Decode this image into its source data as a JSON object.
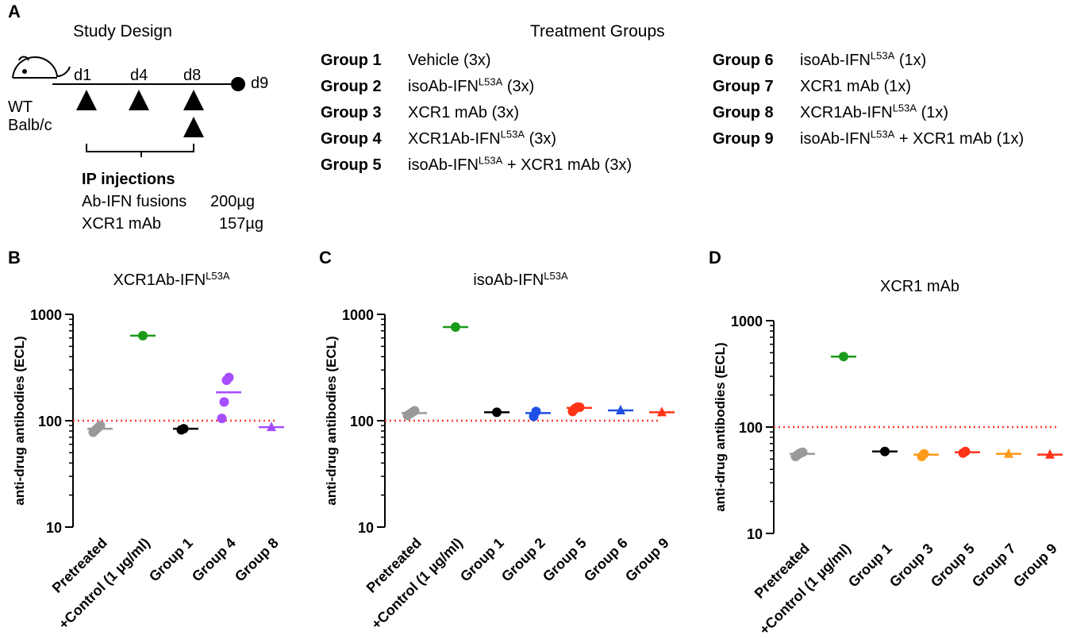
{
  "panel_a": {
    "letter": "A",
    "study_design_title": "Study Design",
    "treatment_title": "Treatment Groups",
    "days": [
      "d1",
      "d4",
      "d8",
      "d9"
    ],
    "mouse_label_1": "WT",
    "mouse_label_2": "Balb/c",
    "ip_title": "IP injections",
    "ip_line1_name": "Ab-IFN fusions",
    "ip_line1_dose": "200µg",
    "ip_line2_name": "XCR1 mAb",
    "ip_line2_dose": "157µg",
    "groups_left": [
      {
        "name": "Group 1",
        "pre": "Vehicle (3x)",
        "sup": "",
        "post": ""
      },
      {
        "name": "Group 2",
        "pre": "isoAb-IFN",
        "sup": "L53A",
        "post": " (3x)"
      },
      {
        "name": "Group 3",
        "pre": "XCR1 mAb (3x)",
        "sup": "",
        "post": ""
      },
      {
        "name": "Group 4",
        "pre": "XCR1Ab-IFN",
        "sup": "L53A",
        "post": " (3x)"
      },
      {
        "name": "Group 5",
        "pre": "isoAb-IFN",
        "sup": "L53A",
        "post": " + XCR1 mAb (3x)"
      }
    ],
    "groups_right": [
      {
        "name": "Group 6",
        "pre": "isoAb-IFN",
        "sup": "L53A",
        "post": " (1x)"
      },
      {
        "name": "Group 7",
        "pre": "XCR1 mAb (1x)",
        "sup": "",
        "post": ""
      },
      {
        "name": "Group 8",
        "pre": "XCR1Ab-IFN",
        "sup": "L53A",
        "post": " (1x)"
      },
      {
        "name": "Group 9",
        "pre": "isoAb-IFN",
        "sup": "L53A",
        "post": " + XCR1 mAb (1x)"
      }
    ]
  },
  "colors": {
    "gray": "#999999",
    "green": "#1a9a1a",
    "black": "#000000",
    "purple": "#a64dff",
    "blue": "#1f4fe6",
    "red": "#ff3318",
    "orange": "#ff9a1a",
    "threshold": "#ff3b30"
  },
  "chart_data": [
    {
      "type": "scatter",
      "panel": "B",
      "title": "XCR1Ab-IFN",
      "title_sup": "L53A",
      "ylabel": "anti-drug antibodies (ECL)",
      "yscale": "log",
      "ylim": [
        10,
        1000
      ],
      "yticks": [
        "10",
        "100",
        "1000"
      ],
      "threshold": 100,
      "categories": [
        "Pretreated",
        "+Control (1 µg/ml)",
        "Group 1",
        "Group 4",
        "Group 8"
      ],
      "series": [
        {
          "category": "Pretreated",
          "color": "#999999",
          "marker": "circle",
          "values": [
            78,
            82,
            86,
            90
          ],
          "median": 84
        },
        {
          "category": "+Control (1 µg/ml)",
          "color": "#1a9a1a",
          "marker": "circle",
          "values": [
            630
          ],
          "median": 630
        },
        {
          "category": "Group 1",
          "color": "#000000",
          "marker": "circle",
          "values": [
            82,
            84
          ],
          "median": 84
        },
        {
          "category": "Group 4",
          "color": "#a64dff",
          "marker": "circle",
          "values": [
            105,
            150,
            240,
            255
          ],
          "median": 185
        },
        {
          "category": "Group 8",
          "color": "#a64dff",
          "marker": "triangle",
          "values": [
            87
          ],
          "median": 87
        }
      ]
    },
    {
      "type": "scatter",
      "panel": "C",
      "title": "isoAb-IFN",
      "title_sup": "L53A",
      "ylabel": "anti-drug antibodies (ECL)",
      "yscale": "log",
      "ylim": [
        10,
        1000
      ],
      "yticks": [
        "10",
        "100",
        "1000"
      ],
      "threshold": 100,
      "categories": [
        "Pretreated",
        "+Control (1 µg/ml)",
        "Group 1",
        "Group 2",
        "Group 5",
        "Group 6",
        "Group 9"
      ],
      "series": [
        {
          "category": "Pretreated",
          "color": "#999999",
          "marker": "circle",
          "values": [
            112,
            116,
            120,
            124
          ],
          "median": 118
        },
        {
          "category": "+Control (1 µg/ml)",
          "color": "#1a9a1a",
          "marker": "circle",
          "values": [
            760
          ],
          "median": 760
        },
        {
          "category": "Group 1",
          "color": "#000000",
          "marker": "circle",
          "values": [
            120
          ],
          "median": 120
        },
        {
          "category": "Group 2",
          "color": "#1f4fe6",
          "marker": "circle",
          "values": [
            110,
            122
          ],
          "median": 118
        },
        {
          "category": "Group 5",
          "color": "#ff3318",
          "marker": "circle",
          "values": [
            122,
            130,
            134,
            134
          ],
          "median": 132
        },
        {
          "category": "Group 6",
          "color": "#1f4fe6",
          "marker": "triangle",
          "values": [
            125
          ],
          "median": 125
        },
        {
          "category": "Group 9",
          "color": "#ff3318",
          "marker": "triangle",
          "values": [
            120
          ],
          "median": 120
        }
      ]
    },
    {
      "type": "scatter",
      "panel": "D",
      "title": "XCR1 mAb",
      "title_sup": "",
      "ylabel": "anti-drug antibodies (ECL)",
      "yscale": "log",
      "ylim": [
        10,
        1000
      ],
      "yticks": [
        "10",
        "100",
        "1000"
      ],
      "threshold": 100,
      "categories": [
        "Pretreated",
        "+Control (1 µg/ml)",
        "Group 1",
        "Group 3",
        "Group 5",
        "Group 7",
        "Group 9"
      ],
      "series": [
        {
          "category": "Pretreated",
          "color": "#999999",
          "marker": "circle",
          "values": [
            53,
            55,
            57,
            58
          ],
          "median": 56
        },
        {
          "category": "+Control (1 µg/ml)",
          "color": "#1a9a1a",
          "marker": "circle",
          "values": [
            460
          ],
          "median": 460
        },
        {
          "category": "Group 1",
          "color": "#000000",
          "marker": "circle",
          "values": [
            59
          ],
          "median": 59
        },
        {
          "category": "Group 3",
          "color": "#ff9a1a",
          "marker": "circle",
          "values": [
            53,
            56
          ],
          "median": 55
        },
        {
          "category": "Group 5",
          "color": "#ff3318",
          "marker": "circle",
          "values": [
            57,
            59
          ],
          "median": 58
        },
        {
          "category": "Group 7",
          "color": "#ff9a1a",
          "marker": "triangle",
          "values": [
            56
          ],
          "median": 56
        },
        {
          "category": "Group 9",
          "color": "#ff3318",
          "marker": "triangle",
          "values": [
            55
          ],
          "median": 55
        }
      ]
    }
  ]
}
